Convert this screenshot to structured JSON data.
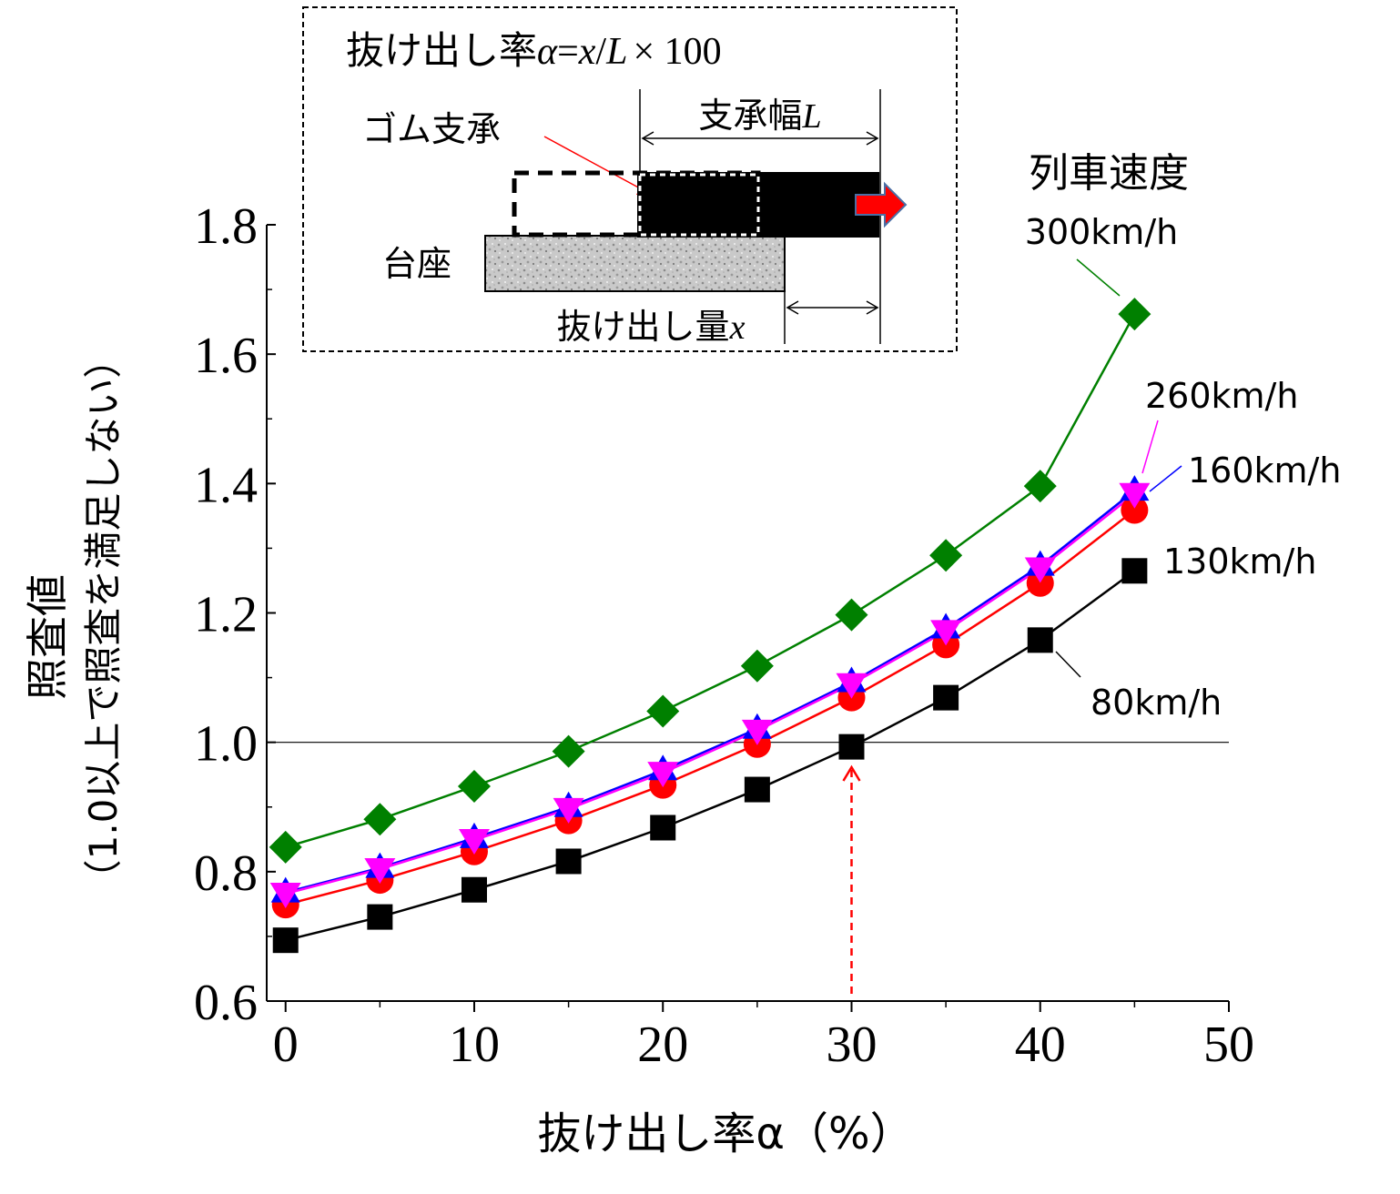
{
  "chart_data": {
    "type": "line",
    "x": [
      0,
      5,
      10,
      15,
      20,
      25,
      30,
      35,
      40,
      45
    ],
    "xlim": [
      -1,
      50
    ],
    "ylim": [
      0.6,
      1.8
    ],
    "xticks": [
      "0",
      "10",
      "20",
      "30",
      "40",
      "50"
    ],
    "yticks": [
      "0.6",
      "0.8",
      "1.0",
      "1.2",
      "1.4",
      "1.6",
      "1.8"
    ],
    "xlabel": "抜け出し率α（%）",
    "ylabel_line1": "照査値",
    "ylabel_line2": "（1.0以上で照査を満足しない）",
    "reference_line": 1.0,
    "marker_arrow_x": 30,
    "series": [
      {
        "name": "80km/h",
        "color": "#000000",
        "marker": "square",
        "values": [
          0.694,
          0.73,
          0.772,
          0.816,
          0.868,
          0.927,
          0.993,
          1.069,
          1.158,
          1.265
        ]
      },
      {
        "name": "130km/h",
        "color": "#ff0000",
        "marker": "circle",
        "values": [
          0.749,
          0.787,
          0.831,
          0.879,
          0.934,
          0.997,
          1.069,
          1.151,
          1.246,
          1.359
        ]
      },
      {
        "name": "160km/h",
        "color": "#0000ff",
        "marker": "triangle-up",
        "values": [
          0.768,
          0.806,
          0.852,
          0.9,
          0.957,
          1.021,
          1.093,
          1.176,
          1.273,
          1.389
        ]
      },
      {
        "name": "260km/h",
        "color": "#ff00ff",
        "marker": "triangle-down",
        "values": [
          0.766,
          0.804,
          0.849,
          0.897,
          0.953,
          1.018,
          1.09,
          1.172,
          1.269,
          1.384
        ]
      },
      {
        "name": "300km/h",
        "color": "#008000",
        "marker": "diamond",
        "values": [
          0.838,
          0.881,
          0.932,
          0.986,
          1.048,
          1.118,
          1.197,
          1.289,
          1.396,
          1.662
        ]
      }
    ],
    "legend_title": "列車速度"
  },
  "inset": {
    "formula_prefix": "抜け出し率",
    "formula_alpha": "α",
    "formula_eq": "=",
    "formula_x": "x",
    "formula_slash": "/",
    "formula_L": "L",
    "formula_suffix": "× 100",
    "label_gom": "ゴム支承",
    "label_width": "支承幅",
    "label_width_var": "L",
    "label_base": "台座",
    "label_slip": "抜け出し量",
    "label_slip_var": "x"
  },
  "colors": {
    "dashed_arrow": "#ff0000",
    "push_arrow_fill": "#ff0000",
    "push_arrow_stroke": "#4a6fa5",
    "base_fill": "#c8c8c8"
  }
}
